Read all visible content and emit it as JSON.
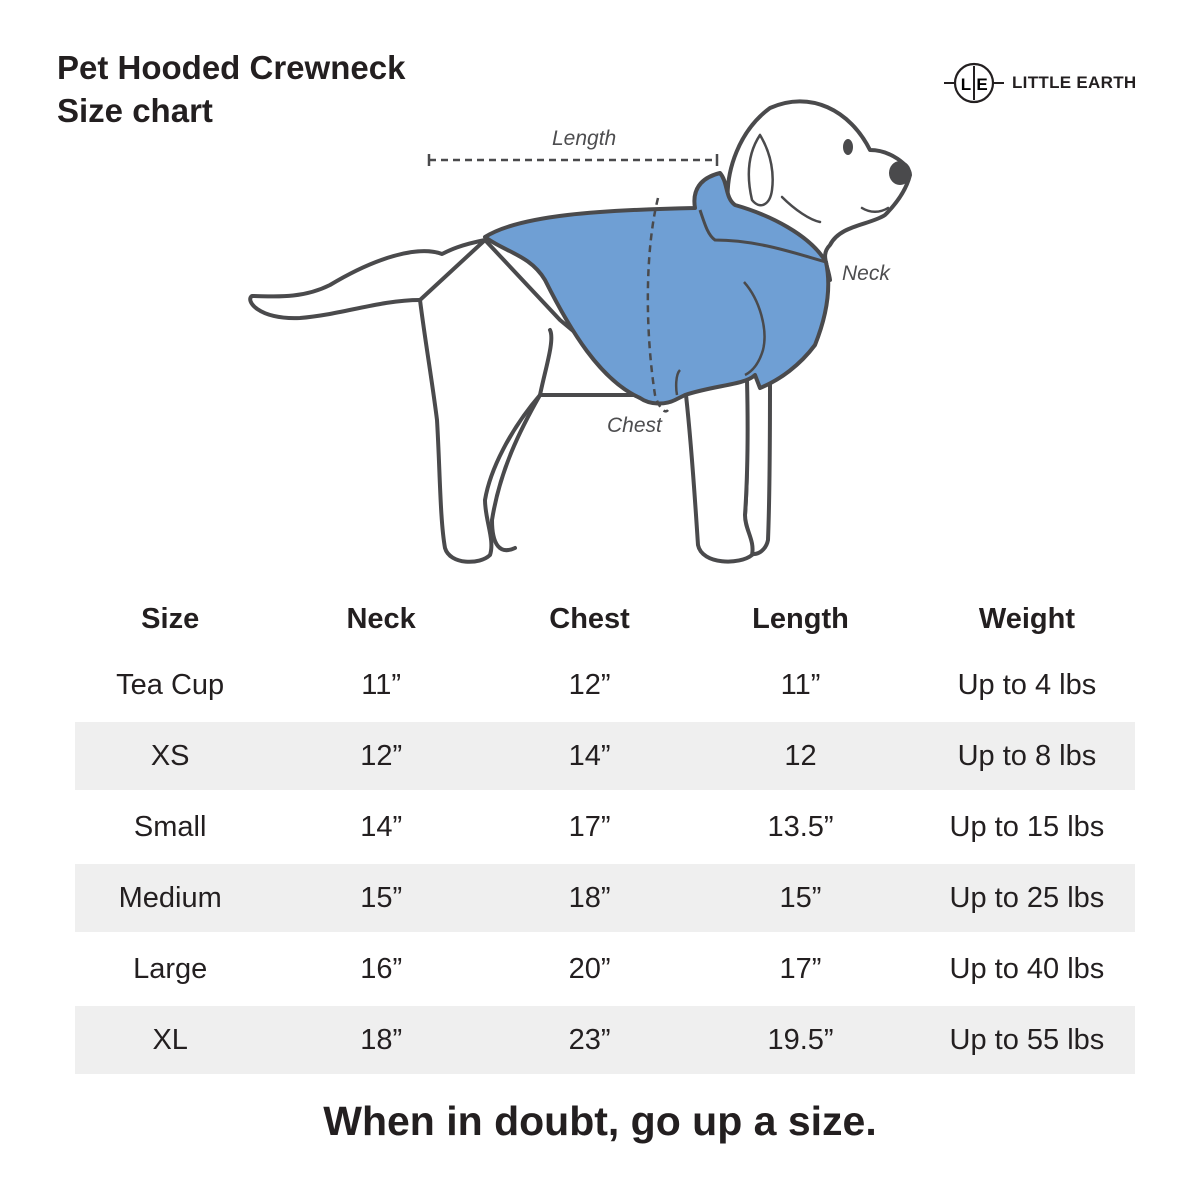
{
  "title": {
    "line1": "Pet Hooded Crewneck",
    "line2": "Size chart"
  },
  "logo": {
    "mark_left": "L",
    "mark_right": "E",
    "text": "LITTLE EARTH"
  },
  "illustration": {
    "labels": {
      "length": "Length",
      "neck": "Neck",
      "chest": "Chest"
    },
    "hoodie_color": "#6f9fd4",
    "outline_color": "#4a4a4c"
  },
  "table": {
    "headers": [
      "Size",
      "Neck",
      "Chest",
      "Length",
      "Weight"
    ],
    "rows": [
      [
        "Tea Cup",
        "11”",
        "12”",
        "11”",
        "Up to 4 lbs"
      ],
      [
        "XS",
        "12”",
        "14”",
        "12",
        "Up to 8 lbs"
      ],
      [
        "Small",
        "14”",
        "17”",
        "13.5”",
        "Up to 15 lbs"
      ],
      [
        "Medium",
        "15”",
        "18”",
        "15”",
        "Up to 25 lbs"
      ],
      [
        "Large",
        "16”",
        "20”",
        "17”",
        "Up to 40 lbs"
      ],
      [
        "XL",
        "18”",
        "23”",
        "19.5”",
        "Up to 55 lbs"
      ]
    ],
    "stripe_color": "#efefef"
  },
  "footer": "When in doubt, go up a size."
}
